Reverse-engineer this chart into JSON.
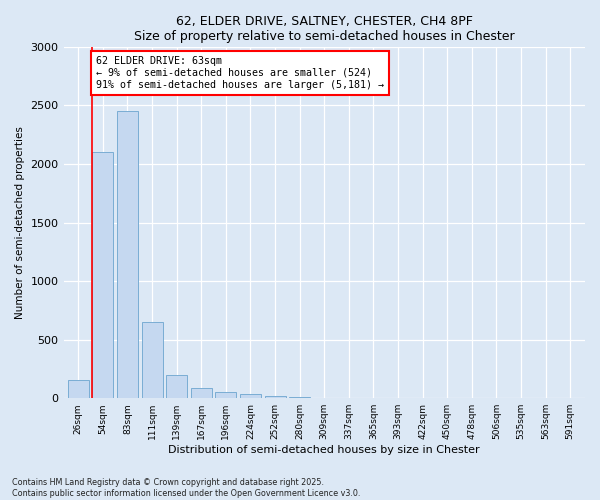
{
  "title1": "62, ELDER DRIVE, SALTNEY, CHESTER, CH4 8PF",
  "title2": "Size of property relative to semi-detached houses in Chester",
  "xlabel": "Distribution of semi-detached houses by size in Chester",
  "ylabel": "Number of semi-detached properties",
  "bar_color": "#c5d8f0",
  "bar_edge_color": "#7aadd4",
  "categories": [
    "26sqm",
    "54sqm",
    "83sqm",
    "111sqm",
    "139sqm",
    "167sqm",
    "196sqm",
    "224sqm",
    "252sqm",
    "280sqm",
    "309sqm",
    "337sqm",
    "365sqm",
    "393sqm",
    "422sqm",
    "450sqm",
    "478sqm",
    "506sqm",
    "535sqm",
    "563sqm",
    "591sqm"
  ],
  "values": [
    155,
    2100,
    2450,
    650,
    200,
    90,
    55,
    35,
    20,
    8,
    3,
    0,
    0,
    0,
    0,
    0,
    0,
    0,
    0,
    0,
    0
  ],
  "ylim": [
    0,
    3000
  ],
  "yticks": [
    0,
    500,
    1000,
    1500,
    2000,
    2500,
    3000
  ],
  "red_line_bin": 1,
  "annotation_text": "62 ELDER DRIVE: 63sqm\n← 9% of semi-detached houses are smaller (524)\n91% of semi-detached houses are larger (5,181) →",
  "footnote": "Contains HM Land Registry data © Crown copyright and database right 2025.\nContains public sector information licensed under the Open Government Licence v3.0.",
  "background_color": "#dce8f5",
  "plot_bg_color": "#dce8f5"
}
